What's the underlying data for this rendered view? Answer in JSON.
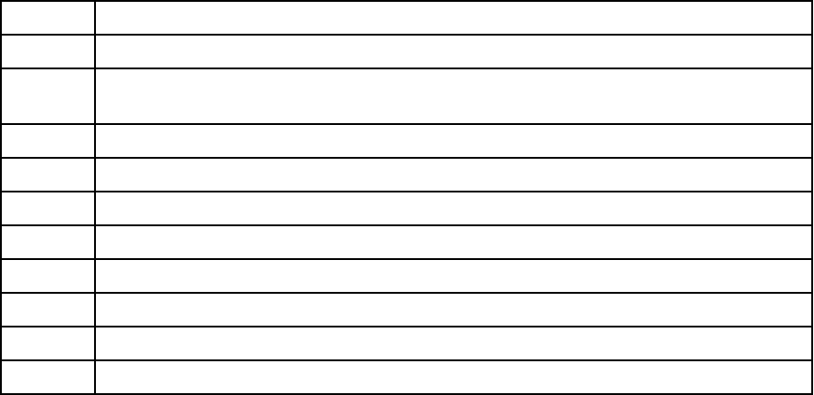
{
  "colors": {
    "border": "#000000",
    "background": "#ffffff"
  },
  "table": {
    "rows": [
      [
        "",
        ""
      ],
      [
        "",
        ""
      ],
      [
        "",
        ""
      ],
      [
        "",
        ""
      ],
      [
        "",
        ""
      ],
      [
        "",
        ""
      ],
      [
        "",
        ""
      ],
      [
        "",
        ""
      ],
      [
        "",
        ""
      ],
      [
        "",
        ""
      ],
      [
        "",
        ""
      ]
    ]
  }
}
